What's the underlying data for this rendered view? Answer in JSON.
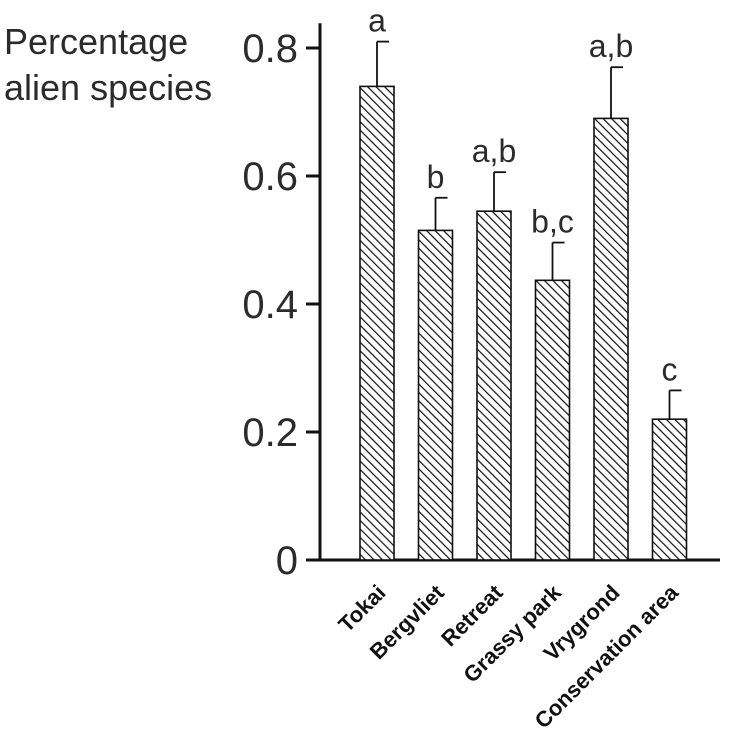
{
  "chart_data": {
    "type": "bar",
    "ylabel_lines": [
      "Percentage",
      "alien species"
    ],
    "categories": [
      "Tokai",
      "Bergvliet",
      "Retreat",
      "Grassy park",
      "Vrygrond",
      "Conservation area"
    ],
    "values": [
      0.74,
      0.515,
      0.545,
      0.437,
      0.69,
      0.22
    ],
    "error_upper": [
      0.81,
      0.566,
      0.606,
      0.496,
      0.77,
      0.265
    ],
    "significance_labels": [
      "a",
      "b",
      "a,b",
      "b,c",
      "a,b",
      "c"
    ],
    "yticks": [
      0,
      0.2,
      0.4,
      0.6,
      0.8
    ],
    "ytick_labels": [
      "0",
      "0.2",
      "0.4",
      "0.6",
      "0.8"
    ],
    "ylim": [
      0,
      0.82
    ],
    "grid": false,
    "bar_fill": "diagonal-hatch",
    "colors": {
      "bar_stroke": "#111111",
      "hatch": "#111111",
      "axis": "#111111",
      "background": "#ffffff"
    }
  }
}
